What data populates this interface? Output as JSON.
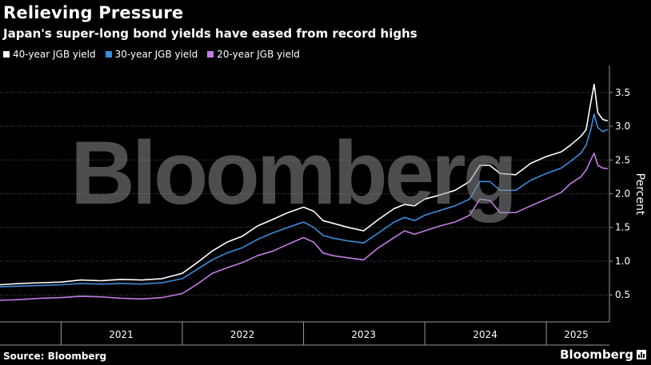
{
  "header": {
    "title": "Relieving Pressure",
    "subtitle": "Japan's super-long bond yields have eased from record highs"
  },
  "watermark": "Bloomberg",
  "footer": {
    "source": "Source: Bloomberg",
    "brand": "Bloomberg"
  },
  "colors": {
    "background": "#000000",
    "series_40y": "#ffffff",
    "series_30y": "#3a8dde",
    "series_20y": "#c47ce8",
    "grid": "#555555"
  },
  "chart_data": {
    "type": "line",
    "title": "Relieving Pressure",
    "subtitle": "Japan's super-long bond yields have eased from record highs",
    "xlabel": "",
    "ylabel": "Percent",
    "ylim": [
      0.1,
      3.9
    ],
    "yticks": [
      0.5,
      1.0,
      1.5,
      2.0,
      2.5,
      3.0,
      3.5
    ],
    "ytick_labels": [
      "0.5",
      "1.0",
      "1.5",
      "2.0",
      "2.5",
      "3.0",
      "3.5"
    ],
    "xlim": [
      "2020-07-01",
      "2025-07-10"
    ],
    "xtick_labels": [
      "2021",
      "2022",
      "2023",
      "2024",
      "2025"
    ],
    "xtick_dates": [
      "2021-07-01",
      "2022-07-01",
      "2023-07-01",
      "2024-07-01",
      "2025-04-01"
    ],
    "x_boundaries": [
      "2021-01-01",
      "2022-01-01",
      "2023-01-01",
      "2024-01-01",
      "2025-01-01"
    ],
    "grid": true,
    "legend_position": "top-left",
    "series": [
      {
        "name": "40-year JGB yield",
        "color": "#ffffff",
        "x": [
          "2020-07-01",
          "2020-09-01",
          "2020-11-01",
          "2021-01-01",
          "2021-03-01",
          "2021-05-01",
          "2021-07-01",
          "2021-09-01",
          "2021-11-01",
          "2022-01-01",
          "2022-02-15",
          "2022-04-01",
          "2022-05-15",
          "2022-07-01",
          "2022-08-15",
          "2022-10-01",
          "2022-11-15",
          "2023-01-01",
          "2023-02-01",
          "2023-03-01",
          "2023-04-01",
          "2023-05-15",
          "2023-07-01",
          "2023-08-15",
          "2023-10-01",
          "2023-11-01",
          "2023-12-01",
          "2024-01-01",
          "2024-02-15",
          "2024-04-01",
          "2024-05-15",
          "2024-06-15",
          "2024-07-15",
          "2024-08-15",
          "2024-10-01",
          "2024-11-15",
          "2025-01-01",
          "2025-02-15",
          "2025-03-15",
          "2025-04-15",
          "2025-05-01",
          "2025-05-15",
          "2025-05-25",
          "2025-06-05",
          "2025-06-20",
          "2025-07-05"
        ],
        "values": [
          0.65,
          0.67,
          0.68,
          0.69,
          0.72,
          0.71,
          0.73,
          0.72,
          0.74,
          0.82,
          0.98,
          1.15,
          1.28,
          1.37,
          1.52,
          1.62,
          1.72,
          1.8,
          1.74,
          1.6,
          1.56,
          1.5,
          1.45,
          1.62,
          1.78,
          1.84,
          1.82,
          1.92,
          1.98,
          2.05,
          2.18,
          2.42,
          2.42,
          2.3,
          2.28,
          2.45,
          2.55,
          2.62,
          2.72,
          2.85,
          2.95,
          3.35,
          3.62,
          3.2,
          3.1,
          3.08
        ]
      },
      {
        "name": "30-year JGB yield",
        "color": "#3a8dde",
        "x": [
          "2020-07-01",
          "2020-09-01",
          "2020-11-01",
          "2021-01-01",
          "2021-03-01",
          "2021-05-01",
          "2021-07-01",
          "2021-09-01",
          "2021-11-01",
          "2022-01-01",
          "2022-02-15",
          "2022-04-01",
          "2022-05-15",
          "2022-07-01",
          "2022-08-15",
          "2022-10-01",
          "2022-11-15",
          "2023-01-01",
          "2023-02-01",
          "2023-03-01",
          "2023-04-01",
          "2023-05-15",
          "2023-07-01",
          "2023-08-15",
          "2023-10-01",
          "2023-11-01",
          "2023-12-01",
          "2024-01-01",
          "2024-02-15",
          "2024-04-01",
          "2024-05-15",
          "2024-06-15",
          "2024-07-15",
          "2024-08-15",
          "2024-10-01",
          "2024-11-15",
          "2025-01-01",
          "2025-02-15",
          "2025-03-15",
          "2025-04-15",
          "2025-05-01",
          "2025-05-15",
          "2025-05-25",
          "2025-06-05",
          "2025-06-20",
          "2025-07-05"
        ],
        "values": [
          0.62,
          0.63,
          0.64,
          0.65,
          0.67,
          0.66,
          0.67,
          0.66,
          0.68,
          0.74,
          0.88,
          1.02,
          1.12,
          1.2,
          1.32,
          1.42,
          1.5,
          1.58,
          1.5,
          1.38,
          1.34,
          1.3,
          1.27,
          1.42,
          1.58,
          1.65,
          1.6,
          1.68,
          1.75,
          1.82,
          1.92,
          2.18,
          2.18,
          2.05,
          2.05,
          2.2,
          2.3,
          2.38,
          2.48,
          2.6,
          2.72,
          2.95,
          3.18,
          2.98,
          2.92,
          2.95
        ]
      },
      {
        "name": "20-year JGB yield",
        "color": "#c47ce8",
        "x": [
          "2020-07-01",
          "2020-09-01",
          "2020-11-01",
          "2021-01-01",
          "2021-03-01",
          "2021-05-01",
          "2021-07-01",
          "2021-09-01",
          "2021-11-01",
          "2022-01-01",
          "2022-02-15",
          "2022-04-01",
          "2022-05-15",
          "2022-07-01",
          "2022-08-15",
          "2022-10-01",
          "2022-11-15",
          "2023-01-01",
          "2023-02-01",
          "2023-03-01",
          "2023-04-01",
          "2023-05-15",
          "2023-07-01",
          "2023-08-15",
          "2023-10-01",
          "2023-11-01",
          "2023-12-01",
          "2024-01-01",
          "2024-02-15",
          "2024-04-01",
          "2024-05-15",
          "2024-06-15",
          "2024-07-15",
          "2024-08-15",
          "2024-10-01",
          "2024-11-15",
          "2025-01-01",
          "2025-02-15",
          "2025-03-15",
          "2025-04-15",
          "2025-05-01",
          "2025-05-15",
          "2025-05-25",
          "2025-06-05",
          "2025-06-20",
          "2025-07-05"
        ],
        "values": [
          0.42,
          0.43,
          0.45,
          0.46,
          0.48,
          0.47,
          0.45,
          0.44,
          0.46,
          0.52,
          0.66,
          0.82,
          0.9,
          0.98,
          1.08,
          1.15,
          1.25,
          1.35,
          1.28,
          1.12,
          1.08,
          1.05,
          1.02,
          1.2,
          1.35,
          1.45,
          1.4,
          1.45,
          1.52,
          1.58,
          1.68,
          1.92,
          1.9,
          1.72,
          1.72,
          1.82,
          1.92,
          2.02,
          2.15,
          2.25,
          2.35,
          2.5,
          2.6,
          2.42,
          2.38,
          2.37
        ]
      }
    ]
  }
}
